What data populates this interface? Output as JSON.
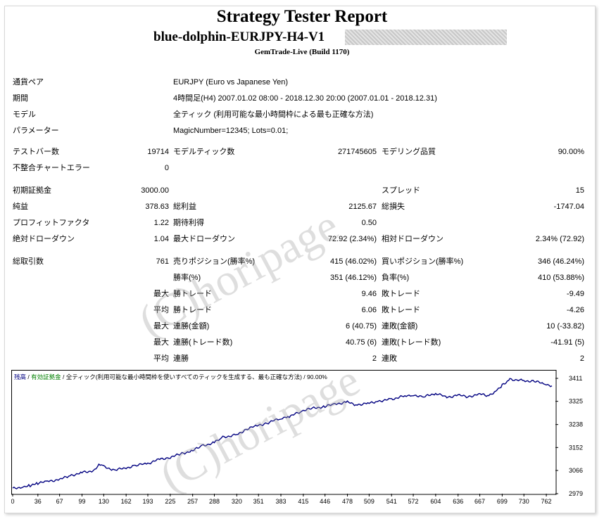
{
  "header": {
    "title": "Strategy Tester Report",
    "ea_name": "blue-dolphin-EURJPY-H4-V1",
    "build": "GemTrade-Live (Build 1170)"
  },
  "info": [
    {
      "label": "通貨ペア",
      "value": "EURJPY (Euro vs Japanese Yen)"
    },
    {
      "label": "期間",
      "value": "4時間足(H4) 2007.01.02 08:00 - 2018.12.30 20:00 (2007.01.01 - 2018.12.31)"
    },
    {
      "label": "モデル",
      "value": "全ティック (利用可能な最小時間枠による最も正確な方法)"
    },
    {
      "label": "パラメーター",
      "value": "MagicNumber=12345; Lots=0.01;"
    }
  ],
  "stats": {
    "bars_label": "テストバー数",
    "bars": "19714",
    "ticks_label": "モデルティック数",
    "ticks": "271745605",
    "quality_label": "モデリング品質",
    "quality": "90.00%",
    "mismatch_label": "不整合チャートエラー",
    "mismatch": "0",
    "deposit_label": "初期証拠金",
    "deposit": "3000.00",
    "spread_label": "スプレッド",
    "spread": "15",
    "net_label": "純益",
    "net": "378.63",
    "gross_profit_label": "総利益",
    "gross_profit": "2125.67",
    "gross_loss_label": "総損失",
    "gross_loss": "-1747.04",
    "pf_label": "プロフィットファクタ",
    "pf": "1.22",
    "payoff_label": "期待利得",
    "payoff": "0.50",
    "abs_dd_label": "絶対ドローダウン",
    "abs_dd": "1.04",
    "max_dd_label": "最大ドローダウン",
    "max_dd": "72.92 (2.34%)",
    "rel_dd_label": "相対ドローダウン",
    "rel_dd": "2.34% (72.92)",
    "trades_label": "総取引数",
    "trades": "761",
    "short_label": "売りポジション(勝率%)",
    "short": "415 (46.02%)",
    "long_label": "買いポジション(勝率%)",
    "long": "346 (46.24%)",
    "win_label": "勝率(%)",
    "win": "351 (46.12%)",
    "loss_label": "負率(%)",
    "loss": "410 (53.88%)",
    "max_word": "最大",
    "avg_word": "平均",
    "largest_win_label": "勝トレード",
    "largest_win": "9.46",
    "largest_loss_label": "敗トレード",
    "largest_loss": "-9.49",
    "avg_win_label": "勝トレード",
    "avg_win": "6.06",
    "avg_loss_label": "敗トレード",
    "avg_loss": "-4.26",
    "cons_win_money_label": "連勝(金額)",
    "cons_win_money": "6 (40.75)",
    "cons_loss_money_label": "連敗(金額)",
    "cons_loss_money": "10 (-33.82)",
    "cons_win_count_label": "連勝(トレード数)",
    "cons_win_count": "40.75 (6)",
    "cons_loss_count_label": "連敗(トレード数)",
    "cons_loss_count": "-41.91 (5)",
    "avg_cons_win_label": "連勝",
    "avg_cons_win": "2",
    "avg_cons_loss_label": "連敗",
    "avg_cons_loss": "2"
  },
  "chart_data": {
    "type": "line",
    "legend": {
      "balance": "残高",
      "sep1": " / ",
      "equity": "有効証拠金",
      "sep2": " / ",
      "model": "全ティック(利用可能な最小時間枠を使いすべてのティックを生成する、最も正確な方法)",
      "sep3": " / ",
      "quality": "90.00%"
    },
    "x_ticks": [
      "0",
      "36",
      "67",
      "99",
      "130",
      "162",
      "193",
      "225",
      "257",
      "288",
      "320",
      "351",
      "383",
      "415",
      "446",
      "478",
      "509",
      "541",
      "572",
      "604",
      "636",
      "667",
      "699",
      "730",
      "762"
    ],
    "y_ticks": [
      "3411",
      "3325",
      "3238",
      "3152",
      "3066",
      "2979"
    ],
    "ylim": [
      2979,
      3411
    ],
    "xlim": [
      0,
      775
    ],
    "series": [
      {
        "color": "#000080",
        "x": [
          0,
          15,
          25,
          36,
          50,
          67,
          80,
          99,
          115,
          125,
          130,
          145,
          162,
          175,
          193,
          210,
          225,
          240,
          257,
          270,
          288,
          300,
          320,
          335,
          351,
          365,
          383,
          395,
          415,
          430,
          446,
          460,
          478,
          490,
          509,
          520,
          541,
          560,
          572,
          585,
          604,
          620,
          636,
          650,
          667,
          680,
          690,
          699,
          710,
          730,
          745,
          760,
          770
        ],
        "y": [
          2998,
          3005,
          3010,
          3018,
          3025,
          3032,
          3045,
          3058,
          3065,
          3090,
          3080,
          3068,
          3075,
          3085,
          3092,
          3108,
          3115,
          3128,
          3140,
          3158,
          3170,
          3190,
          3200,
          3222,
          3235,
          3245,
          3262,
          3268,
          3290,
          3300,
          3305,
          3315,
          3322,
          3312,
          3318,
          3325,
          3333,
          3345,
          3350,
          3340,
          3355,
          3340,
          3348,
          3342,
          3352,
          3346,
          3365,
          3385,
          3408,
          3402,
          3400,
          3390,
          3383
        ]
      }
    ]
  },
  "watermark": "(C)horipage",
  "colors": {
    "line": "#000080",
    "equity_green": "#008000",
    "axis": "#000000"
  }
}
